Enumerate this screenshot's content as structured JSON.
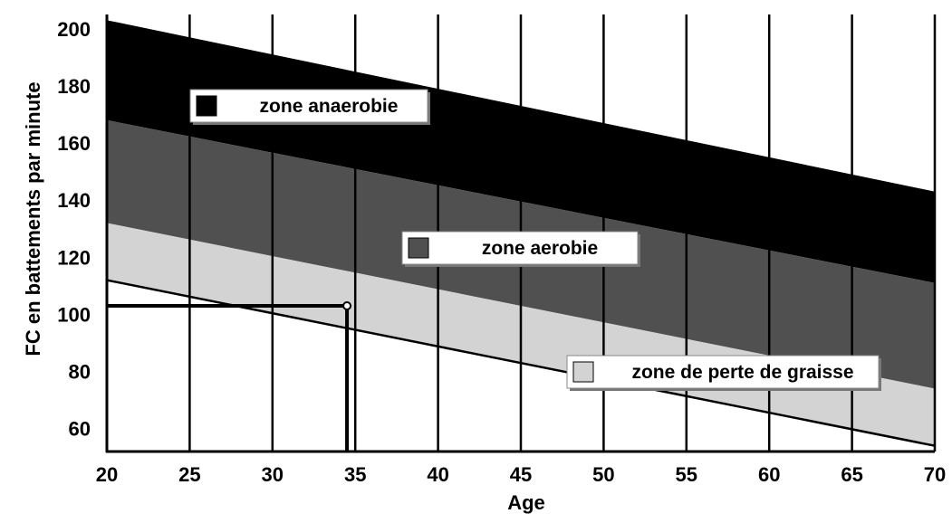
{
  "chart_data": {
    "type": "area",
    "xlabel": "Age",
    "ylabel": "FC en battements par minute",
    "xlim": [
      20,
      70
    ],
    "ylim": [
      52,
      205
    ],
    "x_ticks": [
      20,
      25,
      30,
      35,
      40,
      45,
      50,
      55,
      60,
      65,
      70
    ],
    "y_ticks": [
      60,
      80,
      100,
      120,
      140,
      160,
      180,
      200
    ],
    "vertical_gridlines": true,
    "series": [
      {
        "name": "zone anaerobie",
        "color": "#000000",
        "x": [
          20,
          70
        ],
        "lower": [
          168,
          111
        ],
        "upper": [
          203,
          143
        ]
      },
      {
        "name": "zone aerobie",
        "color": "#505050",
        "x": [
          20,
          70
        ],
        "lower": [
          132,
          74
        ],
        "upper": [
          168,
          111
        ]
      },
      {
        "name": "zone de perte de graisse",
        "color": "#d3d3d3",
        "x": [
          20,
          70
        ],
        "lower": [
          112,
          54
        ],
        "upper": [
          132,
          74
        ]
      }
    ],
    "reference_point": {
      "x": 34.5,
      "y": 103
    },
    "legend": [
      {
        "label": "zone anaerobie",
        "color": "#000000"
      },
      {
        "label": "zone aerobie",
        "color": "#505050"
      },
      {
        "label": "zone de perte de graisse",
        "color": "#d3d3d3"
      }
    ]
  }
}
